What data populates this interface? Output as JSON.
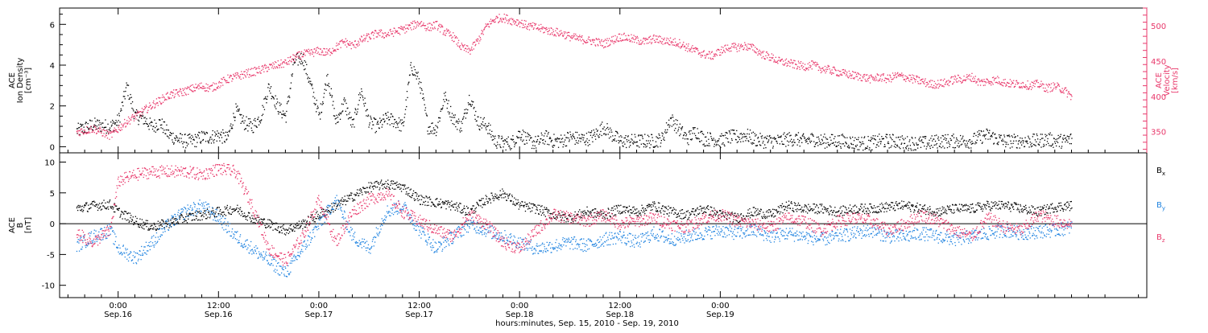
{
  "chart_data": [
    {
      "type": "scatter",
      "panel": "top",
      "ylabel_lines": [
        "ACE",
        "Ion Density",
        "[cm⁻³]"
      ],
      "y2label_lines": [
        "ACE",
        "Velocity",
        "[km/s]"
      ],
      "ylim": [
        -0.3,
        6.8
      ],
      "y2lim": [
        320,
        525
      ],
      "yticks": [
        0,
        2,
        4,
        6
      ],
      "y2ticks": [
        350,
        400,
        450,
        500
      ],
      "series": [
        {
          "axis": "left",
          "color": "#000000",
          "x": [
            -5,
            -3,
            -1,
            0,
            1,
            2,
            3,
            4,
            5,
            6,
            7,
            8,
            9,
            10,
            11,
            12,
            13,
            14,
            15,
            16,
            17,
            18,
            19,
            20,
            21,
            22,
            23,
            24,
            25,
            26,
            27,
            28,
            29,
            30,
            31,
            32,
            33,
            34,
            35,
            36,
            37,
            38,
            39,
            40,
            41,
            42,
            43,
            44,
            45,
            46,
            47,
            48,
            49,
            50,
            51,
            52,
            53,
            54,
            55,
            56,
            57,
            58,
            59,
            60,
            61,
            62,
            63,
            64,
            65,
            66,
            67,
            68,
            69,
            70,
            71,
            72,
            73,
            74,
            75,
            76,
            77,
            78,
            79,
            80,
            81,
            82,
            83,
            84,
            85,
            86,
            87,
            88,
            89,
            90,
            91,
            92,
            93,
            94,
            95,
            96,
            97,
            98,
            99,
            100,
            101,
            102,
            103,
            104,
            105,
            106,
            107,
            108,
            109,
            110,
            111,
            112,
            113,
            114
          ],
          "values": [
            0.8,
            1.1,
            1.0,
            1.3,
            3.0,
            1.5,
            1.4,
            1.0,
            1.2,
            0.6,
            0.4,
            0.3,
            0.3,
            0.5,
            0.5,
            0.6,
            0.4,
            1.8,
            1.2,
            1.0,
            1.5,
            3.0,
            2.0,
            1.5,
            4.2,
            4.4,
            3.0,
            1.5,
            3.5,
            1.2,
            2.2,
            1.0,
            2.8,
            1.2,
            1.0,
            1.4,
            1.3,
            1.0,
            4.0,
            3.2,
            1.0,
            0.9,
            2.5,
            1.4,
            1.0,
            2.5,
            1.2,
            1.1,
            0.3,
            0.2,
            0.2,
            0.7,
            0.3,
            0.2,
            0.5,
            0.3,
            0.3,
            0.5,
            0.4,
            0.4,
            0.6,
            1.0,
            0.6,
            0.3,
            0.3,
            0.3,
            0.3,
            0.3,
            0.4,
            1.4,
            0.9,
            0.4,
            0.8,
            0.4,
            0.4,
            0.3,
            0.5,
            0.5,
            0.6,
            0.4,
            0.3,
            0.3,
            0.3,
            0.4,
            0.4,
            0.3,
            0.4,
            0.3,
            0.3,
            0.3,
            0.3,
            0.2,
            0.2,
            0.2,
            0.3,
            0.3,
            0.3,
            0.2,
            0.2,
            0.2,
            0.2,
            0.3,
            0.3,
            0.3,
            0.3,
            0.3,
            0.5,
            0.6,
            0.4,
            0.3,
            0.3,
            0.3,
            0.3,
            0.3,
            0.4,
            0.3,
            0.3,
            0.4
          ]
        },
        {
          "axis": "right",
          "color": "#e8386b",
          "x": [
            -5,
            -3,
            -1,
            0,
            1,
            2,
            3,
            4,
            5,
            6,
            7,
            8,
            9,
            10,
            11,
            12,
            13,
            14,
            15,
            16,
            17,
            18,
            19,
            20,
            21,
            22,
            23,
            24,
            25,
            26,
            27,
            28,
            29,
            30,
            31,
            32,
            33,
            34,
            35,
            36,
            37,
            38,
            39,
            40,
            41,
            42,
            43,
            44,
            45,
            46,
            47,
            48,
            49,
            50,
            51,
            52,
            53,
            54,
            55,
            56,
            57,
            58,
            59,
            60,
            61,
            62,
            63,
            64,
            65,
            66,
            67,
            68,
            69,
            70,
            71,
            72,
            73,
            74,
            75,
            76,
            77,
            78,
            79,
            80,
            81,
            82,
            83,
            84,
            85,
            86,
            87,
            88,
            89,
            90,
            91,
            92,
            93,
            94,
            95,
            96,
            97,
            98,
            99,
            100,
            101,
            102,
            103,
            104,
            105,
            106,
            107,
            108,
            109,
            110,
            111,
            112,
            113,
            114
          ],
          "values": [
            350,
            355,
            345,
            355,
            365,
            372,
            380,
            388,
            395,
            402,
            405,
            408,
            412,
            415,
            412,
            418,
            425,
            428,
            432,
            435,
            438,
            442,
            445,
            448,
            455,
            460,
            462,
            465,
            462,
            470,
            478,
            472,
            480,
            485,
            490,
            488,
            492,
            495,
            500,
            505,
            498,
            502,
            492,
            485,
            470,
            465,
            480,
            500,
            510,
            512,
            508,
            505,
            500,
            498,
            495,
            492,
            490,
            485,
            482,
            480,
            478,
            475,
            480,
            485,
            483,
            480,
            478,
            482,
            480,
            478,
            476,
            470,
            465,
            460,
            458,
            465,
            470,
            470,
            472,
            468,
            460,
            456,
            450,
            448,
            445,
            443,
            445,
            440,
            438,
            435,
            432,
            430,
            428,
            425,
            428,
            425,
            430,
            428,
            425,
            422,
            418,
            418,
            420,
            425,
            425,
            428,
            420,
            422,
            424,
            420,
            418,
            418,
            416,
            418,
            412,
            415,
            410,
            400
          ]
        }
      ]
    },
    {
      "type": "scatter",
      "panel": "bottom",
      "ylabel_lines": [
        "ACE",
        "B",
        "[nT]"
      ],
      "ylim": [
        -12,
        11.5
      ],
      "yticks": [
        -10,
        -5,
        0,
        5,
        10
      ],
      "legend": [
        {
          "name": "B",
          "sub": "x",
          "color": "#000000"
        },
        {
          "name": "B",
          "sub": "y",
          "color": "#1f83e0"
        },
        {
          "name": "B",
          "sub": "z",
          "color": "#e8386b"
        }
      ],
      "series": [
        {
          "name": "Bx",
          "color": "#000000",
          "x": [
            -5,
            -3,
            -1,
            0,
            2,
            4,
            6,
            8,
            10,
            12,
            14,
            16,
            18,
            20,
            22,
            24,
            26,
            28,
            30,
            32,
            34,
            36,
            38,
            40,
            42,
            44,
            46,
            48,
            50,
            52,
            54,
            56,
            58,
            60,
            62,
            64,
            66,
            68,
            70,
            72,
            74,
            76,
            78,
            80,
            82,
            84,
            86,
            88,
            90,
            92,
            94,
            96,
            98,
            100,
            102,
            104,
            106,
            108,
            110,
            112,
            114
          ],
          "values": [
            2.5,
            3.0,
            3.2,
            2.0,
            0.5,
            -0.5,
            0.2,
            1.0,
            1.5,
            2.0,
            2.5,
            1.0,
            0.0,
            -1.0,
            0.0,
            1.5,
            3.0,
            4.5,
            6.0,
            6.5,
            6.0,
            4.0,
            3.5,
            3.0,
            2.0,
            4.0,
            5.0,
            3.0,
            2.5,
            1.5,
            1.0,
            2.0,
            1.5,
            2.5,
            2.0,
            3.0,
            2.0,
            1.5,
            2.5,
            1.5,
            1.0,
            2.0,
            1.5,
            3.0,
            2.5,
            2.5,
            2.0,
            2.5,
            2.5,
            2.8,
            3.0,
            2.5,
            2.0,
            2.5,
            2.5,
            3.0,
            3.0,
            2.5,
            2.0,
            2.8,
            3.0
          ]
        },
        {
          "name": "By",
          "color": "#1f83e0",
          "x": [
            -5,
            -3,
            -1,
            0,
            2,
            4,
            6,
            8,
            10,
            12,
            14,
            16,
            18,
            20,
            22,
            24,
            26,
            28,
            30,
            32,
            34,
            36,
            38,
            40,
            42,
            44,
            46,
            48,
            50,
            52,
            54,
            56,
            58,
            60,
            62,
            64,
            66,
            68,
            70,
            72,
            74,
            76,
            78,
            80,
            82,
            84,
            86,
            88,
            90,
            92,
            94,
            96,
            98,
            100,
            102,
            104,
            106,
            108,
            110,
            112,
            114
          ],
          "values": [
            -3.5,
            -2.0,
            -1.0,
            -4.0,
            -5.5,
            -3.0,
            0.0,
            2.0,
            3.0,
            1.0,
            -2.0,
            -4.0,
            -6.0,
            -8.0,
            -4.0,
            0.0,
            4.0,
            -2.0,
            -4.0,
            2.0,
            3.0,
            -1.0,
            -4.0,
            -2.0,
            0.0,
            -1.0,
            -2.0,
            -3.0,
            -4.0,
            -3.5,
            -3.0,
            -3.5,
            -2.5,
            -2.0,
            -3.0,
            -1.5,
            -2.5,
            -2.0,
            -1.5,
            -1.0,
            -1.5,
            -1.0,
            -2.0,
            -1.5,
            -2.0,
            -2.5,
            -2.0,
            -1.5,
            -1.0,
            -2.0,
            -2.0,
            -1.5,
            -2.0,
            -2.5,
            -2.0,
            -1.5,
            -1.0,
            -1.5,
            -1.2,
            -1.0,
            -0.5
          ]
        },
        {
          "name": "Bz",
          "color": "#e8386b",
          "x": [
            -5,
            -3,
            -1,
            0,
            2,
            4,
            6,
            8,
            10,
            12,
            14,
            16,
            18,
            20,
            22,
            24,
            26,
            28,
            30,
            32,
            34,
            36,
            38,
            40,
            42,
            44,
            46,
            48,
            50,
            52,
            54,
            56,
            58,
            60,
            62,
            64,
            66,
            68,
            70,
            72,
            74,
            76,
            78,
            80,
            82,
            84,
            86,
            88,
            90,
            92,
            94,
            96,
            98,
            100,
            102,
            104,
            106,
            108,
            110,
            112,
            114
          ],
          "values": [
            -1.5,
            -3.0,
            -1.0,
            7.0,
            8.0,
            8.5,
            8.5,
            8.5,
            8.0,
            9.0,
            8.5,
            3.0,
            -4.0,
            -6.0,
            -2.0,
            4.0,
            -3.0,
            2.0,
            4.0,
            5.0,
            2.0,
            0.5,
            -1.0,
            -2.0,
            1.5,
            0.0,
            -3.0,
            -4.0,
            -1.0,
            1.5,
            1.0,
            0.5,
            1.5,
            0.0,
            0.5,
            1.0,
            0.0,
            -0.5,
            1.0,
            1.5,
            0.5,
            0.0,
            -0.5,
            1.0,
            0.5,
            -1.0,
            0.5,
            1.0,
            0.5,
            -1.0,
            0.0,
            1.5,
            0.5,
            -1.0,
            -2.0,
            1.0,
            -0.5,
            -1.0,
            1.5,
            0.5,
            0.0
          ]
        }
      ]
    }
  ],
  "time_axis": {
    "x_range_hours": [
      -7,
      123
    ],
    "ticks": [
      {
        "hours": 0,
        "time": "0:00",
        "date": "Sep.16"
      },
      {
        "hours": 12,
        "time": "12:00",
        "date": "Sep.16"
      },
      {
        "hours": 24,
        "time": "0:00",
        "date": "Sep.17"
      },
      {
        "hours": 36,
        "time": "12:00",
        "date": "Sep.17"
      },
      {
        "hours": 48,
        "time": "0:00",
        "date": "Sep.18"
      },
      {
        "hours": 60,
        "time": "12:00",
        "date": "Sep.18"
      },
      {
        "hours": 72,
        "time": "0:00",
        "date": "Sep.19"
      }
    ],
    "xlabel": "hours:minutes, Sep. 15, 2010 - Sep. 19, 2010"
  }
}
